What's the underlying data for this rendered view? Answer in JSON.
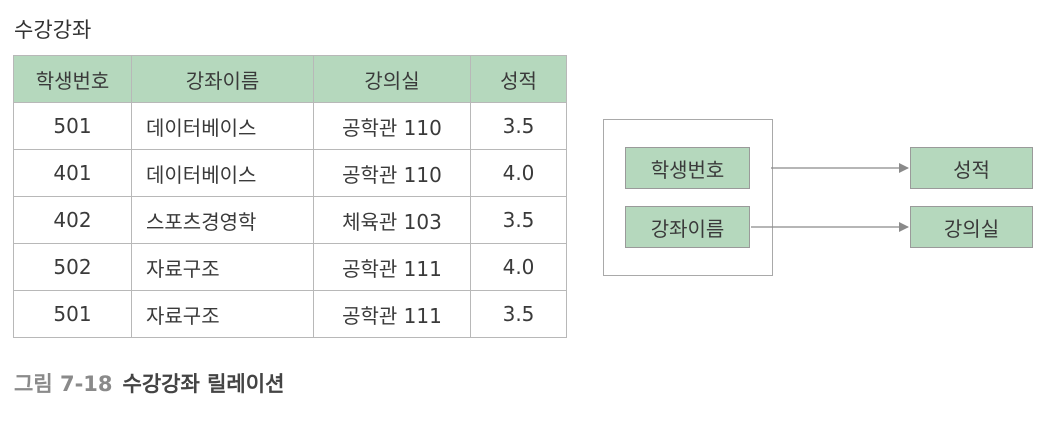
{
  "table_title": "수강강좌",
  "table": {
    "headers": [
      "학생번호",
      "강좌이름",
      "강의실",
      "성적"
    ],
    "rows": [
      [
        "501",
        "데이터베이스",
        "공학관 110",
        "3.5"
      ],
      [
        "401",
        "데이터베이스",
        "공학관 110",
        "4.0"
      ],
      [
        "402",
        "스포츠경영학",
        "체육관 103",
        "3.5"
      ],
      [
        "502",
        "자료구조",
        "공학관 111",
        "4.0"
      ],
      [
        "501",
        "자료구조",
        "공학관 111",
        "3.5"
      ]
    ]
  },
  "diagram": {
    "determinants": [
      "학생번호",
      "강좌이름"
    ],
    "dependents": [
      "성적",
      "강의실"
    ]
  },
  "caption": {
    "number": "그림 7-18",
    "text": "수강강좌 릴레이션"
  },
  "colors": {
    "header_fill": "#b5d8bd",
    "border": "#b8b8b8",
    "arrow": "#8a8a8a"
  }
}
